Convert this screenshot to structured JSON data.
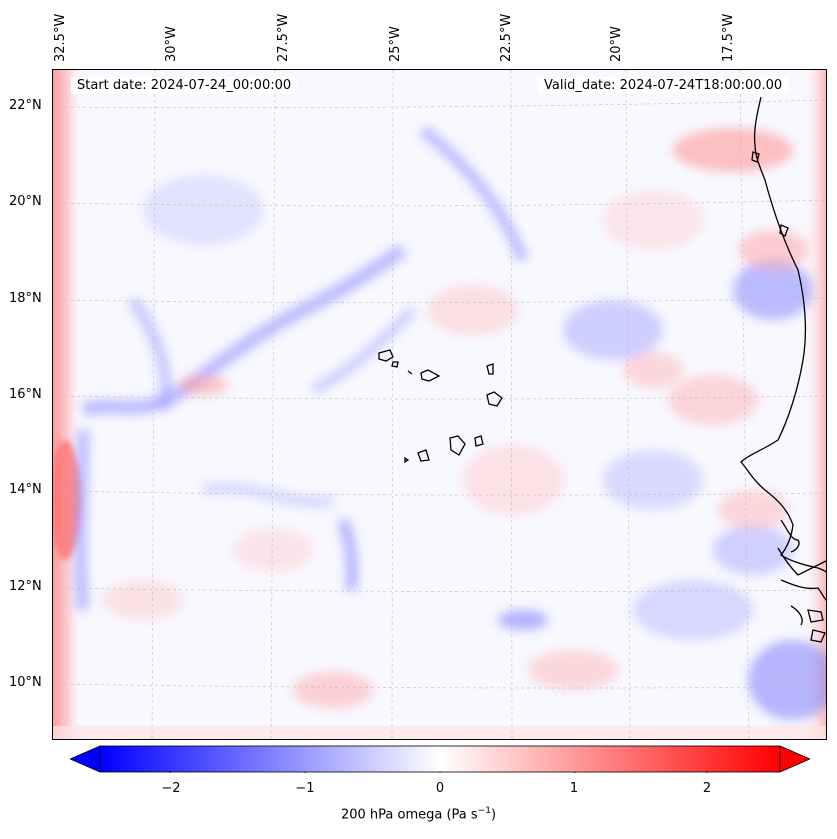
{
  "map": {
    "start_label": "Start date: 2024-07-24_00:00:00",
    "valid_label": "Valid_date: 2024-07-24T18:00:00.00",
    "longitude_labels": [
      "32.5°W",
      "30°W",
      "27.5°W",
      "25°W",
      "22.5°W",
      "20°W",
      "17.5°W"
    ],
    "latitude_labels": [
      "22°N",
      "20°N",
      "18°N",
      "16°N",
      "14°N",
      "12°N",
      "10°N"
    ],
    "variable": "200 hPa omega",
    "colormap": "bwr",
    "colors": {
      "negative": "#0000ff",
      "zero": "#ffffff",
      "positive": "#ff0000",
      "coastline": "#000000"
    }
  },
  "colorbar": {
    "ticks": [
      "−2",
      "−1",
      "0",
      "1",
      "2"
    ],
    "label_prefix": "200 hPa omega (Pa s",
    "label_exp": "−1",
    "label_suffix": ")",
    "range": [
      -2.6,
      2.6
    ],
    "extend": "both"
  }
}
